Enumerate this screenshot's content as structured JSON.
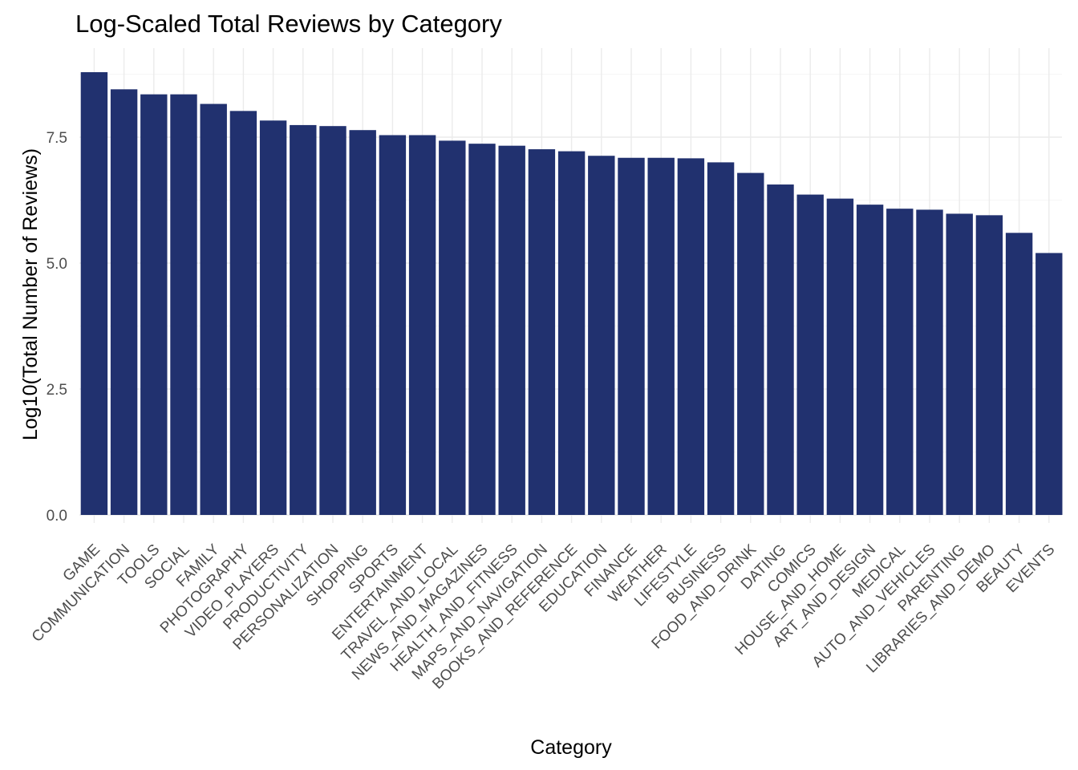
{
  "chart_data": {
    "type": "bar",
    "title": "Log-Scaled Total Reviews by Category",
    "xlabel": "Category",
    "ylabel": "Log10(Total Number of Reviews)",
    "ylim": [
      0,
      8.8
    ],
    "yticks": [
      0.0,
      2.5,
      5.0,
      7.5
    ],
    "ytick_labels": [
      "0.0",
      "2.5",
      "5.0",
      "7.5"
    ],
    "grid": true,
    "bar_color": "#21316f",
    "categories": [
      "GAME",
      "COMMUNICATION",
      "TOOLS",
      "SOCIAL",
      "FAMILY",
      "PHOTOGRAPHY",
      "VIDEO_PLAYERS",
      "PRODUCTIVITY",
      "PERSONALIZATION",
      "SHOPPING",
      "SPORTS",
      "ENTERTAINMENT",
      "TRAVEL_AND_LOCAL",
      "NEWS_AND_MAGAZINES",
      "HEALTH_AND_FITNESS",
      "MAPS_AND_NAVIGATION",
      "BOOKS_AND_REFERENCE",
      "EDUCATION",
      "FINANCE",
      "WEATHER",
      "LIFESTYLE",
      "BUSINESS",
      "FOOD_AND_DRINK",
      "DATING",
      "COMICS",
      "HOUSE_AND_HOME",
      "ART_AND_DESIGN",
      "MEDICAL",
      "AUTO_AND_VEHICLES",
      "PARENTING",
      "LIBRARIES_AND_DEMO",
      "BEAUTY",
      "EVENTS"
    ],
    "values": [
      8.79,
      8.45,
      8.35,
      8.35,
      8.16,
      8.02,
      7.83,
      7.74,
      7.72,
      7.64,
      7.54,
      7.54,
      7.43,
      7.37,
      7.33,
      7.26,
      7.22,
      7.13,
      7.09,
      7.09,
      7.08,
      7.0,
      6.79,
      6.56,
      6.36,
      6.28,
      6.16,
      6.08,
      6.06,
      5.98,
      5.95,
      5.6,
      5.2
    ]
  }
}
